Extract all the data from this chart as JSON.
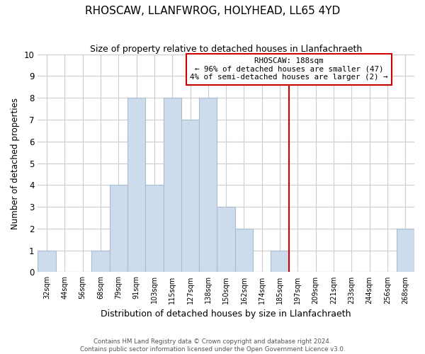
{
  "title": "RHOSCAW, LLANFWROG, HOLYHEAD, LL65 4YD",
  "subtitle": "Size of property relative to detached houses in Llanfachraeth",
  "xlabel": "Distribution of detached houses by size in Llanfachraeth",
  "ylabel": "Number of detached properties",
  "bin_labels": [
    "32sqm",
    "44sqm",
    "56sqm",
    "68sqm",
    "79sqm",
    "91sqm",
    "103sqm",
    "115sqm",
    "127sqm",
    "138sqm",
    "150sqm",
    "162sqm",
    "174sqm",
    "185sqm",
    "197sqm",
    "209sqm",
    "221sqm",
    "233sqm",
    "244sqm",
    "256sqm",
    "268sqm"
  ],
  "bar_values": [
    1,
    0,
    0,
    1,
    4,
    8,
    4,
    8,
    7,
    8,
    3,
    2,
    0,
    1,
    0,
    0,
    0,
    0,
    0,
    0,
    2
  ],
  "bar_color": "#ccdcec",
  "bar_edge_color": "#aabccc",
  "vline_x_index": 13.5,
  "vline_color": "#cc0000",
  "annotation_title": "RHOSCAW: 188sqm",
  "annotation_line1": "← 96% of detached houses are smaller (47)",
  "annotation_line2": "4% of semi-detached houses are larger (2) →",
  "annotation_box_color": "#ffffff",
  "annotation_box_edge": "#cc0000",
  "ylim": [
    0,
    10
  ],
  "yticks": [
    0,
    1,
    2,
    3,
    4,
    5,
    6,
    7,
    8,
    9,
    10
  ],
  "footer_line1": "Contains HM Land Registry data © Crown copyright and database right 2024.",
  "footer_line2": "Contains public sector information licensed under the Open Government Licence v3.0.",
  "bg_color": "#ffffff",
  "grid_color": "#cccccc"
}
